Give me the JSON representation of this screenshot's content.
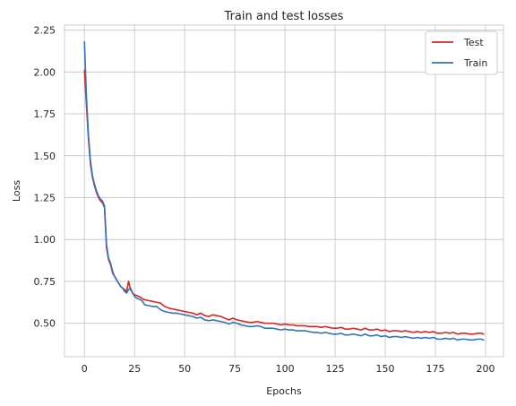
{
  "chart_data": {
    "type": "line",
    "title": "Train and test losses",
    "xlabel": "Epochs",
    "ylabel": "Loss",
    "xlim": [
      -9.95,
      208.95
    ],
    "ylim": [
      0.3,
      2.28
    ],
    "xticks": [
      0,
      25,
      50,
      75,
      100,
      125,
      150,
      175,
      200
    ],
    "xtick_labels": [
      "0",
      "25",
      "50",
      "75",
      "100",
      "125",
      "150",
      "175",
      "200"
    ],
    "yticks": [
      0.5,
      0.75,
      1.0,
      1.25,
      1.5,
      1.75,
      2.0,
      2.25
    ],
    "ytick_labels": [
      "0.50",
      "0.75",
      "1.00",
      "1.25",
      "1.50",
      "1.75",
      "2.00",
      "2.25"
    ],
    "grid": true,
    "legend_position": "top-right",
    "series": [
      {
        "name": "Test",
        "color": "#d62728",
        "x": [
          0,
          1,
          2,
          3,
          4,
          5,
          6,
          7,
          8,
          9,
          10,
          11,
          12,
          13,
          14,
          15,
          16,
          17,
          18,
          19,
          20,
          21,
          22,
          23,
          24,
          25,
          26,
          27,
          28,
          29,
          30,
          32,
          34,
          36,
          38,
          40,
          42,
          44,
          46,
          48,
          50,
          52,
          54,
          56,
          58,
          60,
          62,
          64,
          66,
          68,
          70,
          72,
          74,
          76,
          78,
          80,
          82,
          84,
          86,
          88,
          90,
          92,
          94,
          96,
          98,
          100,
          102,
          104,
          106,
          108,
          110,
          112,
          114,
          116,
          118,
          120,
          122,
          124,
          126,
          128,
          130,
          132,
          134,
          136,
          138,
          140,
          142,
          144,
          146,
          148,
          150,
          152,
          154,
          156,
          158,
          160,
          162,
          164,
          166,
          168,
          170,
          172,
          174,
          176,
          178,
          180,
          182,
          184,
          186,
          188,
          190,
          192,
          194,
          196,
          198,
          199
        ],
        "y": [
          2.01,
          1.8,
          1.6,
          1.45,
          1.37,
          1.32,
          1.28,
          1.25,
          1.23,
          1.22,
          1.19,
          0.95,
          0.88,
          0.85,
          0.8,
          0.78,
          0.76,
          0.74,
          0.72,
          0.71,
          0.7,
          0.69,
          0.75,
          0.7,
          0.68,
          0.67,
          0.665,
          0.66,
          0.655,
          0.645,
          0.64,
          0.635,
          0.63,
          0.625,
          0.62,
          0.6,
          0.59,
          0.585,
          0.58,
          0.575,
          0.57,
          0.565,
          0.56,
          0.55,
          0.56,
          0.545,
          0.54,
          0.55,
          0.545,
          0.54,
          0.53,
          0.52,
          0.53,
          0.52,
          0.515,
          0.51,
          0.505,
          0.505,
          0.51,
          0.505,
          0.5,
          0.5,
          0.5,
          0.495,
          0.49,
          0.495,
          0.49,
          0.49,
          0.485,
          0.485,
          0.485,
          0.48,
          0.48,
          0.48,
          0.475,
          0.48,
          0.475,
          0.47,
          0.47,
          0.475,
          0.465,
          0.465,
          0.47,
          0.465,
          0.46,
          0.47,
          0.46,
          0.46,
          0.465,
          0.455,
          0.46,
          0.45,
          0.455,
          0.455,
          0.45,
          0.455,
          0.45,
          0.445,
          0.45,
          0.445,
          0.45,
          0.445,
          0.45,
          0.44,
          0.44,
          0.445,
          0.44,
          0.445,
          0.435,
          0.44,
          0.44,
          0.435,
          0.435,
          0.44,
          0.44,
          0.435
        ]
      },
      {
        "name": "Train",
        "color": "#3274b6",
        "x": [
          0,
          1,
          2,
          3,
          4,
          5,
          6,
          7,
          8,
          9,
          10,
          11,
          12,
          13,
          14,
          15,
          16,
          17,
          18,
          19,
          20,
          21,
          22,
          23,
          24,
          25,
          26,
          27,
          28,
          29,
          30,
          32,
          34,
          36,
          38,
          40,
          42,
          44,
          46,
          48,
          50,
          52,
          54,
          56,
          58,
          60,
          62,
          64,
          66,
          68,
          70,
          72,
          74,
          76,
          78,
          80,
          82,
          84,
          86,
          88,
          90,
          92,
          94,
          96,
          98,
          100,
          102,
          104,
          106,
          108,
          110,
          112,
          114,
          116,
          118,
          120,
          122,
          124,
          126,
          128,
          130,
          132,
          134,
          136,
          138,
          140,
          142,
          144,
          146,
          148,
          150,
          152,
          154,
          156,
          158,
          160,
          162,
          164,
          166,
          168,
          170,
          172,
          174,
          176,
          178,
          180,
          182,
          184,
          186,
          188,
          190,
          192,
          194,
          196,
          198,
          199
        ],
        "y": [
          2.18,
          1.85,
          1.62,
          1.47,
          1.38,
          1.33,
          1.29,
          1.26,
          1.24,
          1.23,
          1.2,
          0.97,
          0.89,
          0.86,
          0.81,
          0.78,
          0.76,
          0.74,
          0.72,
          0.71,
          0.69,
          0.68,
          0.7,
          0.71,
          0.68,
          0.66,
          0.65,
          0.645,
          0.64,
          0.63,
          0.61,
          0.605,
          0.6,
          0.6,
          0.58,
          0.57,
          0.565,
          0.56,
          0.56,
          0.555,
          0.55,
          0.545,
          0.54,
          0.53,
          0.535,
          0.52,
          0.515,
          0.52,
          0.515,
          0.51,
          0.505,
          0.495,
          0.505,
          0.5,
          0.49,
          0.485,
          0.48,
          0.48,
          0.485,
          0.48,
          0.47,
          0.47,
          0.47,
          0.465,
          0.46,
          0.465,
          0.46,
          0.46,
          0.455,
          0.455,
          0.455,
          0.45,
          0.445,
          0.445,
          0.44,
          0.445,
          0.44,
          0.435,
          0.435,
          0.44,
          0.43,
          0.43,
          0.435,
          0.43,
          0.425,
          0.435,
          0.425,
          0.425,
          0.43,
          0.42,
          0.425,
          0.415,
          0.42,
          0.42,
          0.415,
          0.42,
          0.415,
          0.41,
          0.415,
          0.41,
          0.415,
          0.41,
          0.415,
          0.405,
          0.405,
          0.41,
          0.405,
          0.41,
          0.4,
          0.405,
          0.405,
          0.4,
          0.4,
          0.405,
          0.405,
          0.4
        ]
      }
    ]
  }
}
